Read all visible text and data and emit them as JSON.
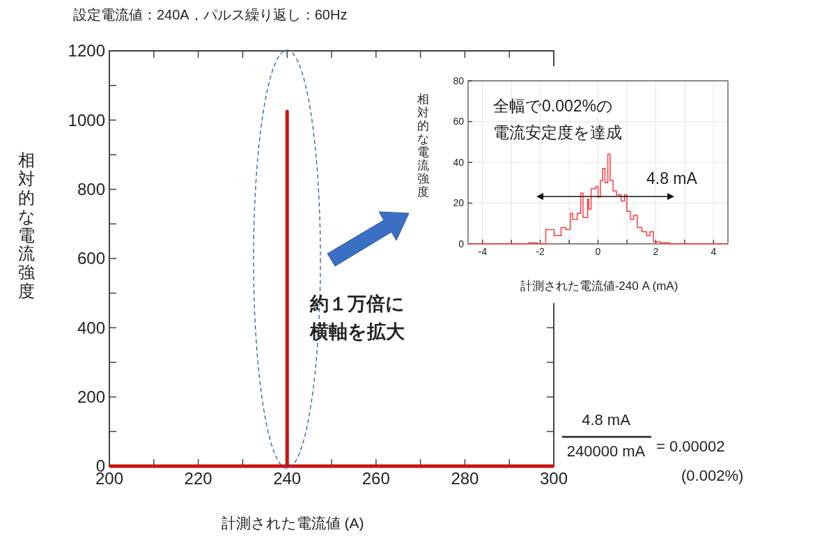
{
  "chart_data": [
    {
      "type": "line",
      "title": "設定電流値：240A，パルス繰り返し：60Hz",
      "xlabel": "計測された電流値 (A)",
      "ylabel": "相対的な電流強度",
      "x": [
        200,
        240,
        240,
        240,
        300
      ],
      "series": [
        {
          "color": "#cc1111",
          "values": [
            0,
            0,
            1025,
            0,
            0
          ]
        }
      ],
      "xlim": [
        200,
        300
      ],
      "ylim": [
        0,
        1200
      ],
      "xticks": [
        200,
        {
          "value": 210,
          "label": null
        },
        220,
        {
          "value": 230,
          "label": null
        },
        240,
        {
          "value": 250,
          "label": null
        },
        260,
        {
          "value": 270,
          "label": null
        },
        280,
        {
          "value": 290,
          "label": null
        },
        300
      ],
      "yticks": [
        0,
        {
          "value": 100,
          "label": null
        },
        200,
        {
          "value": 300,
          "label": null
        },
        400,
        {
          "value": 500,
          "label": null
        },
        600,
        {
          "value": 700,
          "label": null
        },
        800,
        {
          "value": 900,
          "label": null
        },
        1000,
        {
          "value": 1100,
          "label": null
        },
        1200
      ],
      "grid": false,
      "annotations": [
        "約１万倍に",
        "横軸を拡大",
        "4.8 mA",
        "240000 mA",
        "= 0.00002",
        "(0.002%)"
      ]
    },
    {
      "type": "step",
      "xlabel": "計測された電流値-240 A (mA)",
      "ylabel": "相対的な電流強度",
      "x": [
        -4.5,
        -2.4,
        -2.3,
        -2.1,
        -1.81,
        -1.52,
        -1.28,
        -1.12,
        -0.96,
        -0.88,
        -0.72,
        -0.6,
        -0.52,
        -0.36,
        -0.32,
        -0.24,
        -0.08,
        0,
        0.08,
        0.16,
        0.24,
        0.34,
        0.42,
        0.52,
        0.64,
        0.8,
        0.92,
        1,
        1.12,
        1.24,
        1.36,
        1.52,
        1.68,
        1.8,
        1.92,
        2.16,
        2.48,
        4.5
      ],
      "series": [
        {
          "color": "#ff3b3b",
          "values": [
            0,
            0.5,
            0.5,
            0,
            7,
            4,
            8,
            7,
            15,
            12,
            15,
            25,
            13,
            22,
            17,
            27,
            28,
            23,
            31,
            37,
            30,
            44,
            31,
            26,
            24,
            21,
            24,
            16,
            12,
            14,
            8,
            6,
            4,
            6,
            1,
            0.5,
            0,
            0
          ]
        }
      ],
      "xlim": [
        -4.5,
        4.5
      ],
      "ylim": [
        0,
        80
      ],
      "xticks": [
        -4,
        {
          "value": -3,
          "label": null
        },
        -2,
        {
          "value": -1,
          "label": null
        },
        0,
        {
          "value": 1,
          "label": null
        },
        2,
        {
          "value": 3,
          "label": null
        },
        4
      ],
      "yticks": [
        0,
        20,
        40,
        60,
        80
      ],
      "grid": true,
      "annotations": [
        "全幅で0.002%の",
        "電流安定度を達成",
        "4.8 mA"
      ]
    }
  ]
}
